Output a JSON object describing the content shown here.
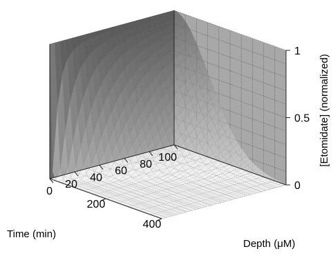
{
  "chart_data": {
    "type": "surface",
    "title": "",
    "axes": {
      "x": {
        "label": "Depth (μM)",
        "ticks": [
          200,
          400
        ],
        "range": [
          0,
          400
        ]
      },
      "y": {
        "label": "Time (min)",
        "ticks": [
          0,
          20,
          40,
          60,
          80,
          100
        ],
        "range": [
          0,
          100
        ]
      },
      "z": {
        "label": "[Etomidate] (normalized)",
        "ticks": [
          0,
          0.5,
          1
        ],
        "range": [
          0,
          1
        ]
      }
    },
    "grid": true,
    "surface_model": "z = 1 at depth 0, decaying with depth; penetration depth grows with time (diffusion profile)",
    "surface_samples": [
      {
        "time": 100,
        "depth": 0,
        "z": 1.0
      },
      {
        "time": 100,
        "depth": 100,
        "z": 0.55
      },
      {
        "time": 100,
        "depth": 200,
        "z": 0.2
      },
      {
        "time": 100,
        "depth": 400,
        "z": 0.02
      },
      {
        "time": 20,
        "depth": 0,
        "z": 1.0
      },
      {
        "time": 20,
        "depth": 100,
        "z": 0.1
      },
      {
        "time": 20,
        "depth": 400,
        "z": 0.0
      },
      {
        "time": 0,
        "depth": 0,
        "z": 1.0
      },
      {
        "time": 0,
        "depth": 50,
        "z": 0.0
      }
    ],
    "colors": {
      "back_wall": "#6a6a6a",
      "side_wall": "#a8a8a8",
      "surface": "#5a5a5a",
      "grid_line": "#555555"
    }
  }
}
